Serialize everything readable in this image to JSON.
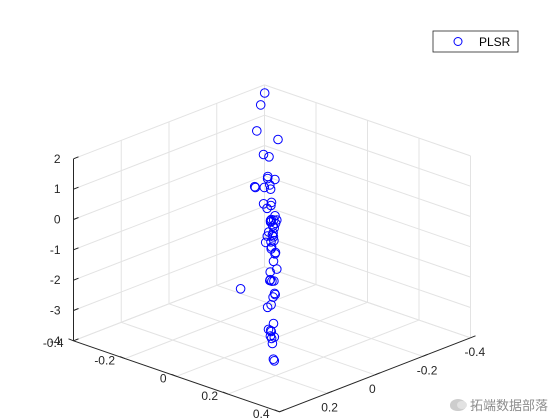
{
  "chart_data": {
    "type": "scatter",
    "title": "",
    "xlabel": "",
    "ylabel": "",
    "zlabel": "",
    "xlim": [
      -0.4,
      0.4
    ],
    "ylim": [
      -0.4,
      0.4
    ],
    "zlim": [
      -4,
      2
    ],
    "x_ticks": [
      "-0.4",
      "-0.2",
      "0",
      "0.2",
      "0.4"
    ],
    "y_ticks": [
      "-0.4",
      "-0.2",
      "0",
      "0.2",
      "0.4"
    ],
    "z_ticks": [
      "-4",
      "-3",
      "-2",
      "-1",
      "0",
      "1",
      "2"
    ],
    "grid": true,
    "legend_position": "top-right",
    "series": [
      {
        "name": "PLSR",
        "color": "#0000ff",
        "marker": "open-circle",
        "points": [
          [
            -0.39,
            -0.39,
            1.79
          ],
          [
            -0.35,
            -0.33,
            1.7
          ],
          [
            -0.3,
            -0.26,
            1.2
          ],
          [
            -0.2,
            -0.18,
            0.96
          ],
          [
            -0.16,
            -0.1,
            0.26
          ],
          [
            -0.19,
            -0.23,
            1.33
          ],
          [
            -0.1,
            -0.12,
            0.61
          ],
          [
            -0.12,
            -0.06,
            0.47
          ],
          [
            -0.03,
            -0.02,
            1.87
          ],
          [
            0.01,
            0.02,
            1.18
          ],
          [
            0.06,
            0.1,
            0.95
          ],
          [
            0.03,
            0.05,
            1.61
          ],
          [
            0.02,
            0.04,
            1.48
          ],
          [
            0.1,
            0.14,
            1.73
          ],
          [
            0.12,
            0.15,
            1.13
          ],
          [
            0.18,
            0.2,
            1.0
          ],
          [
            0.17,
            0.18,
            0.78
          ],
          [
            0.22,
            0.23,
            1.28
          ],
          [
            0.13,
            0.12,
            0.68
          ],
          [
            0.09,
            0.1,
            0.52
          ],
          [
            0.15,
            0.16,
            0.36
          ],
          [
            0.05,
            0.06,
            1.28
          ],
          [
            0.07,
            0.08,
            0.86
          ],
          [
            0.16,
            0.16,
            1.03
          ],
          [
            0.23,
            0.25,
            1.95
          ],
          [
            0.26,
            0.3,
            1.08
          ],
          [
            0.3,
            0.35,
            1.14
          ],
          [
            0.19,
            0.19,
            0.96
          ],
          [
            0.08,
            0.09,
            0.39
          ],
          [
            0.21,
            0.23,
            0.3
          ],
          [
            0.2,
            0.22,
            0.47
          ],
          [
            0.29,
            0.32,
            -0.21
          ],
          [
            -0.01,
            -0.02,
            -0.42
          ],
          [
            -0.08,
            -0.08,
            -0.56
          ],
          [
            -0.05,
            -0.04,
            -0.73
          ],
          [
            -0.07,
            -0.08,
            -0.94
          ],
          [
            -0.02,
            -0.02,
            -1.08
          ],
          [
            0.06,
            0.05,
            -0.81
          ],
          [
            0.08,
            0.08,
            -0.95
          ],
          [
            -0.05,
            -0.06,
            -0.95
          ],
          [
            0.03,
            0.02,
            -1.03
          ],
          [
            0.13,
            0.12,
            -0.94
          ],
          [
            0.1,
            0.1,
            -1.48
          ],
          [
            0.14,
            0.14,
            -1.65
          ],
          [
            0.17,
            0.17,
            -1.51
          ],
          [
            0.03,
            0.04,
            -1.57
          ],
          [
            0.01,
            0.02,
            -1.97
          ],
          [
            0.06,
            0.06,
            -2.25
          ],
          [
            -0.13,
            -0.14,
            -2.89
          ],
          [
            -0.05,
            -0.05,
            -3.16
          ],
          [
            0.08,
            0.08,
            -3.0
          ],
          [
            0.12,
            0.12,
            -3.21
          ],
          [
            0.05,
            0.06,
            -3.38
          ],
          [
            0.15,
            0.16,
            -3.21
          ],
          [
            0.2,
            0.21,
            -3.43
          ],
          [
            -0.11,
            -0.1,
            -3.57
          ],
          [
            0.04,
            0.05,
            -3.62
          ],
          [
            0.12,
            0.12,
            -3.99
          ],
          [
            -0.06,
            -0.05,
            -4.0
          ],
          [
            -0.02,
            -0.02,
            -4.09
          ],
          [
            -0.04,
            -0.04,
            -3.98
          ],
          [
            -0.41,
            -0.45,
            -3.32
          ],
          [
            -0.4,
            -0.3,
            -4.42
          ]
        ]
      }
    ]
  },
  "watermark": {
    "text": "拓端数据部落"
  }
}
